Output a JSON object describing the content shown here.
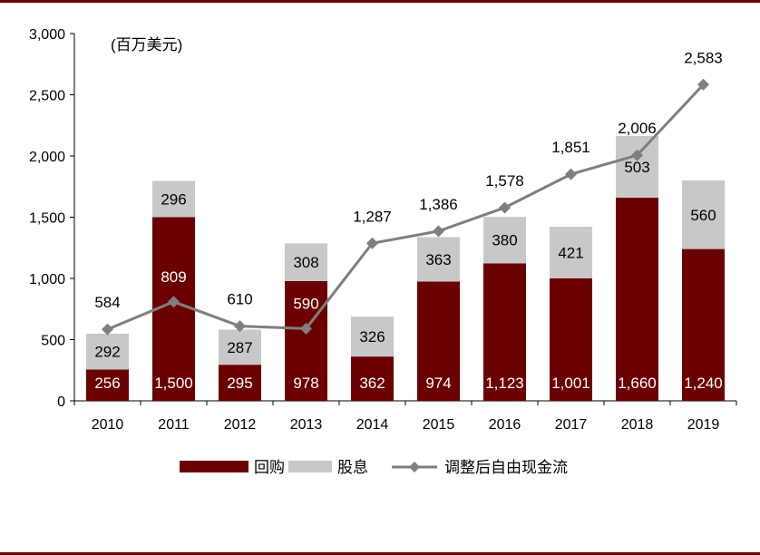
{
  "chart_data": {
    "type": "bar",
    "stacked": true,
    "unit_label": "(百万美元)",
    "categories": [
      "2010",
      "2011",
      "2012",
      "2013",
      "2014",
      "2015",
      "2016",
      "2017",
      "2018",
      "2019"
    ],
    "series": [
      {
        "name": "回购",
        "kind": "bar",
        "color": "#6b0000",
        "values": [
          256,
          1500,
          295,
          978,
          362,
          974,
          1123,
          1001,
          1660,
          1240
        ],
        "labels": [
          "256",
          "1,500",
          "295",
          "978",
          "362",
          "974",
          "1,123",
          "1,001",
          "1,660",
          "1,240"
        ]
      },
      {
        "name": "股息",
        "kind": "bar",
        "color": "#c8c8c8",
        "values": [
          292,
          296,
          287,
          308,
          326,
          363,
          380,
          421,
          503,
          560
        ],
        "labels": [
          "292",
          "296",
          "287",
          "308",
          "326",
          "363",
          "380",
          "421",
          "503",
          "560"
        ]
      },
      {
        "name": "调整后自由现金流",
        "kind": "line",
        "color": "#7f7f7f",
        "values": [
          584,
          809,
          610,
          590,
          1287,
          1386,
          1578,
          1851,
          2006,
          2583
        ],
        "labels": [
          "584",
          "809",
          "610",
          "590",
          "1,287",
          "1,386",
          "1,578",
          "1,851",
          "2,006",
          "2,583"
        ]
      }
    ],
    "ylim": [
      0,
      3000
    ],
    "yticks": [
      0,
      500,
      1000,
      1500,
      2000,
      2500,
      3000
    ],
    "ytick_labels": [
      "0",
      "500",
      "1,000",
      "1,500",
      "2,000",
      "2,500",
      "3,000"
    ],
    "legend_position": "bottom"
  }
}
